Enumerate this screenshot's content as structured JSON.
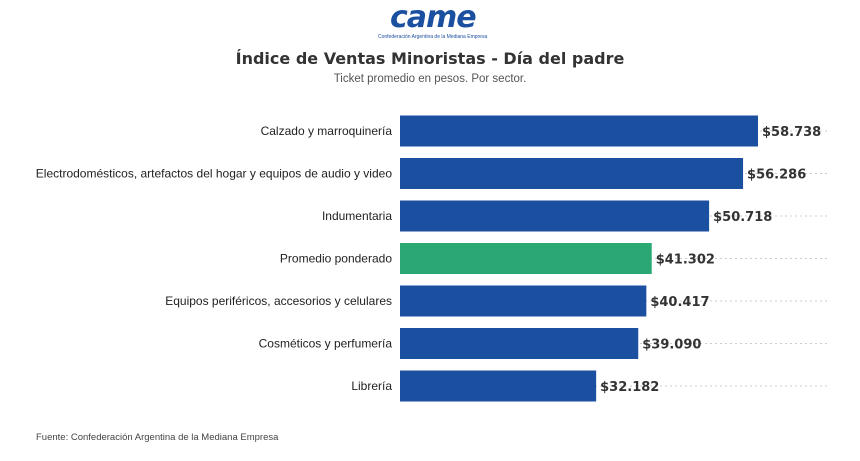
{
  "logo": {
    "word": "came",
    "subtitle": "Confederación Argentina de la Mediana Empresa"
  },
  "chart_data": {
    "type": "bar",
    "orientation": "horizontal",
    "title": "Índice de Ventas Minoristas - Día del padre",
    "subtitle": "Ticket promedio en pesos. Por sector.",
    "categories": [
      "Calzado y marroquinería",
      "Electrodomésticos, artefactos del hogar y equipos de audio y video",
      "Indumentaria",
      "Promedio ponderado",
      "Equipos periféricos, accesorios y celulares",
      "Cosméticos y perfumería",
      "Librería"
    ],
    "values": [
      58738,
      56286,
      50718,
      41302,
      40417,
      39090,
      32182
    ],
    "value_labels": [
      "$58.738",
      "$56.286",
      "$50.718",
      "$41.302",
      "$40.417",
      "$39.090",
      "$32.182"
    ],
    "highlight_index": 3,
    "xlim": [
      0,
      58738
    ],
    "grid": "dotted horizontal guide lines",
    "colors": {
      "bar": "#1b4fa0",
      "highlight": "#2aa874",
      "grid": "#cccccc"
    }
  },
  "source": "Fuente: Confederación Argentina de la Mediana Empresa"
}
